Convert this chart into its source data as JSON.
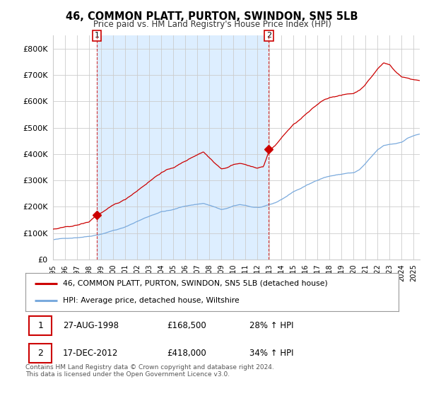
{
  "title": "46, COMMON PLATT, PURTON, SWINDON, SN5 5LB",
  "subtitle": "Price paid vs. HM Land Registry's House Price Index (HPI)",
  "legend_line1": "46, COMMON PLATT, PURTON, SWINDON, SN5 5LB (detached house)",
  "legend_line2": "HPI: Average price, detached house, Wiltshire",
  "footnote1": "Contains HM Land Registry data © Crown copyright and database right 2024.",
  "footnote2": "This data is licensed under the Open Government Licence v3.0.",
  "transaction1_date": "27-AUG-1998",
  "transaction1_price": "£168,500",
  "transaction1_hpi": "28% ↑ HPI",
  "transaction2_date": "17-DEC-2012",
  "transaction2_price": "£418,000",
  "transaction2_hpi": "34% ↑ HPI",
  "red_color": "#cc0000",
  "blue_color": "#7aaadd",
  "shade_color": "#ddeeff",
  "background_color": "#ffffff",
  "grid_color": "#cccccc",
  "ylim": [
    0,
    850000
  ],
  "yticks": [
    0,
    100000,
    200000,
    300000,
    400000,
    500000,
    600000,
    700000,
    800000
  ],
  "ytick_labels": [
    "£0",
    "£100K",
    "£200K",
    "£300K",
    "£400K",
    "£500K",
    "£600K",
    "£700K",
    "£800K"
  ],
  "transaction1_x": 1998.65,
  "transaction1_y": 168500,
  "transaction2_x": 2012.95,
  "transaction2_y": 418000,
  "xlim_start": 1995.0,
  "xlim_end": 2025.5
}
